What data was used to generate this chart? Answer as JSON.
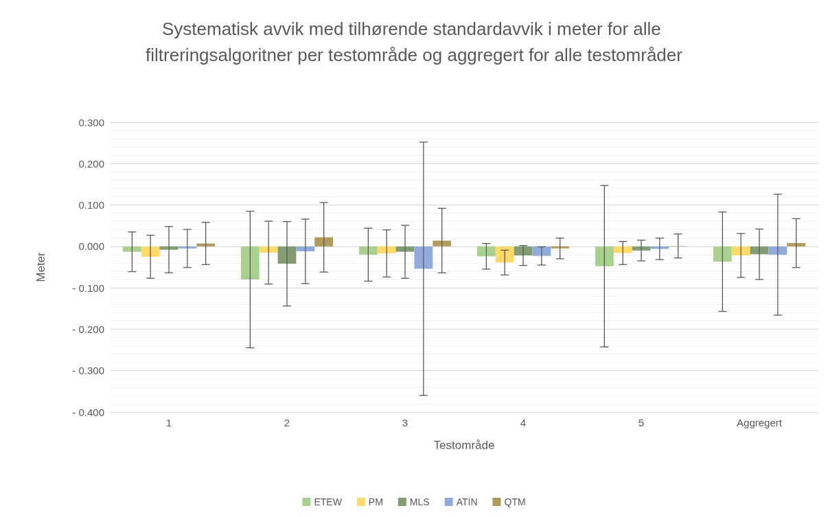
{
  "chart_data": {
    "type": "bar",
    "title": "Systematisk avvik med tilhørende standardavvik i meter for alle filtreringsalgoritner per testområde og aggregert for alle testområder",
    "xlabel": "Testområde",
    "ylabel": "Meter",
    "categories": [
      "1",
      "2",
      "3",
      "4",
      "5",
      "Aggregert"
    ],
    "series": [
      {
        "name": "ETEW",
        "color": "#a9d18e",
        "values": [
          -0.013,
          -0.08,
          -0.02,
          -0.024,
          -0.048,
          -0.037
        ],
        "errors": [
          0.048,
          0.165,
          0.064,
          0.031,
          0.195,
          0.12
        ]
      },
      {
        "name": "PM",
        "color": "#ffd966",
        "values": [
          -0.025,
          -0.015,
          -0.017,
          -0.039,
          -0.016,
          -0.022
        ],
        "errors": [
          0.052,
          0.076,
          0.057,
          0.03,
          0.028,
          0.053
        ]
      },
      {
        "name": "MLS",
        "color": "#849c73",
        "values": [
          -0.008,
          -0.042,
          -0.013,
          -0.022,
          -0.01,
          -0.019
        ],
        "errors": [
          0.056,
          0.102,
          0.064,
          0.024,
          0.025,
          0.061
        ]
      },
      {
        "name": "ATIN",
        "color": "#8faadc",
        "values": [
          -0.005,
          -0.012,
          -0.054,
          -0.023,
          -0.006,
          -0.02
        ],
        "errors": [
          0.046,
          0.078,
          0.306,
          0.022,
          0.026,
          0.146
        ]
      },
      {
        "name": "QTM",
        "color": "#b19c5a",
        "values": [
          0.007,
          0.022,
          0.014,
          -0.005,
          0.001,
          0.008
        ],
        "errors": [
          0.051,
          0.084,
          0.078,
          0.025,
          0.029,
          0.059
        ]
      }
    ],
    "ylim": [
      -0.4,
      0.3
    ],
    "yticks": [
      {
        "value": -0.4,
        "label": "- 0.400"
      },
      {
        "value": -0.3,
        "label": "- 0.300"
      },
      {
        "value": -0.2,
        "label": "- 0.200"
      },
      {
        "value": -0.1,
        "label": "- 0.100"
      },
      {
        "value": 0,
        "label": "0.000"
      },
      {
        "value": 0.1,
        "label": "0.100"
      },
      {
        "value": 0.2,
        "label": "0.200"
      },
      {
        "value": 0.3,
        "label": "0.300"
      }
    ],
    "grid": true,
    "legend": "bottom"
  }
}
